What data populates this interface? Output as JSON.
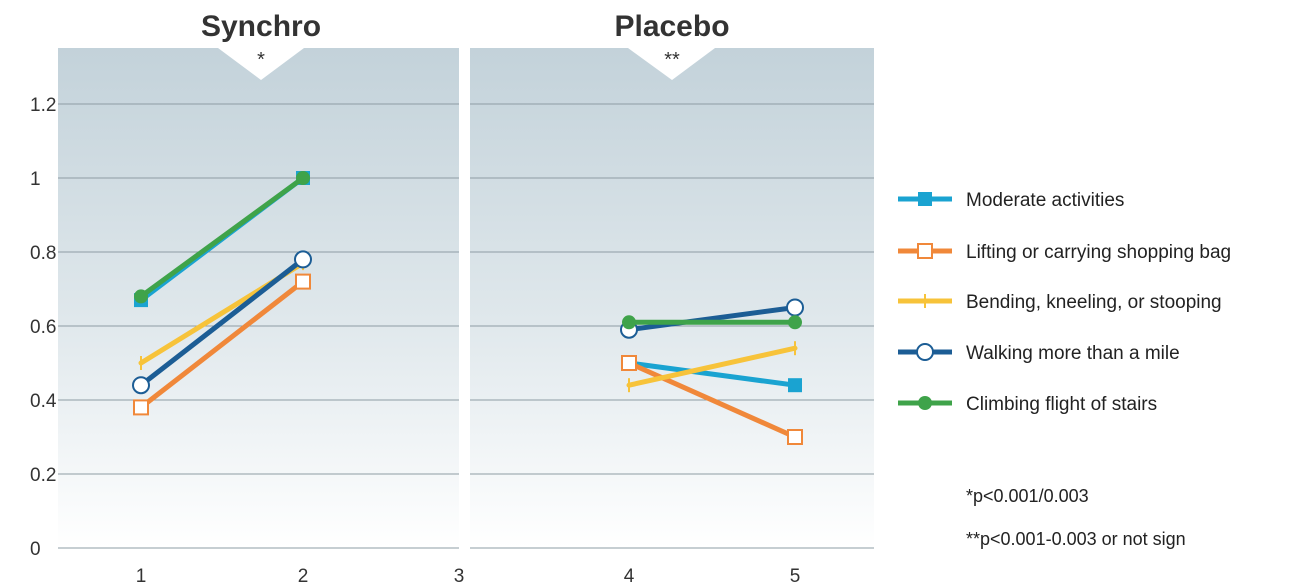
{
  "chart_data": {
    "type": "line",
    "panels": [
      {
        "title": "Synchro",
        "significance": "*",
        "x_range": [
          1,
          2
        ]
      },
      {
        "title": "Placebo",
        "significance": "**",
        "x_range": [
          4,
          5
        ]
      }
    ],
    "x_ticks": [
      "1",
      "2",
      "3",
      "4",
      "5"
    ],
    "y_ticks": [
      "0",
      "0.2",
      "0.4",
      "0.6",
      "0.8",
      "1",
      "1.2"
    ],
    "ylim": [
      0,
      1.3
    ],
    "xlim": [
      1,
      5
    ],
    "grid": true,
    "legend_position": "right",
    "series": [
      {
        "name": "Moderate activities",
        "color": "#1aa3d1",
        "marker": "square-filled",
        "points": [
          [
            1,
            0.67
          ],
          [
            2,
            1.0
          ],
          [
            4,
            0.5
          ],
          [
            5,
            0.44
          ]
        ]
      },
      {
        "name": "Lifting or carrying shopping bag",
        "color": "#f0883a",
        "marker": "square-open",
        "points": [
          [
            1,
            0.38
          ],
          [
            2,
            0.72
          ],
          [
            4,
            0.5
          ],
          [
            5,
            0.3
          ]
        ]
      },
      {
        "name": "Bending, kneeling, or stooping",
        "color": "#f7c33a",
        "marker": "plus",
        "points": [
          [
            1,
            0.5
          ],
          [
            2,
            0.77
          ],
          [
            4,
            0.44
          ],
          [
            5,
            0.54
          ]
        ]
      },
      {
        "name": "Walking more than a mile",
        "color": "#1c5d95",
        "marker": "circle-open",
        "points": [
          [
            1,
            0.44
          ],
          [
            2,
            0.78
          ],
          [
            4,
            0.59
          ],
          [
            5,
            0.65
          ]
        ]
      },
      {
        "name": "Climbing flight of stairs",
        "color": "#3fa34a",
        "marker": "circle-filled",
        "points": [
          [
            1,
            0.68
          ],
          [
            2,
            1.0
          ],
          [
            4,
            0.61
          ],
          [
            5,
            0.61
          ]
        ]
      }
    ],
    "annotations": [
      "*p<0.001/0.003",
      "**p<0.001-0.003 or not sign"
    ]
  }
}
